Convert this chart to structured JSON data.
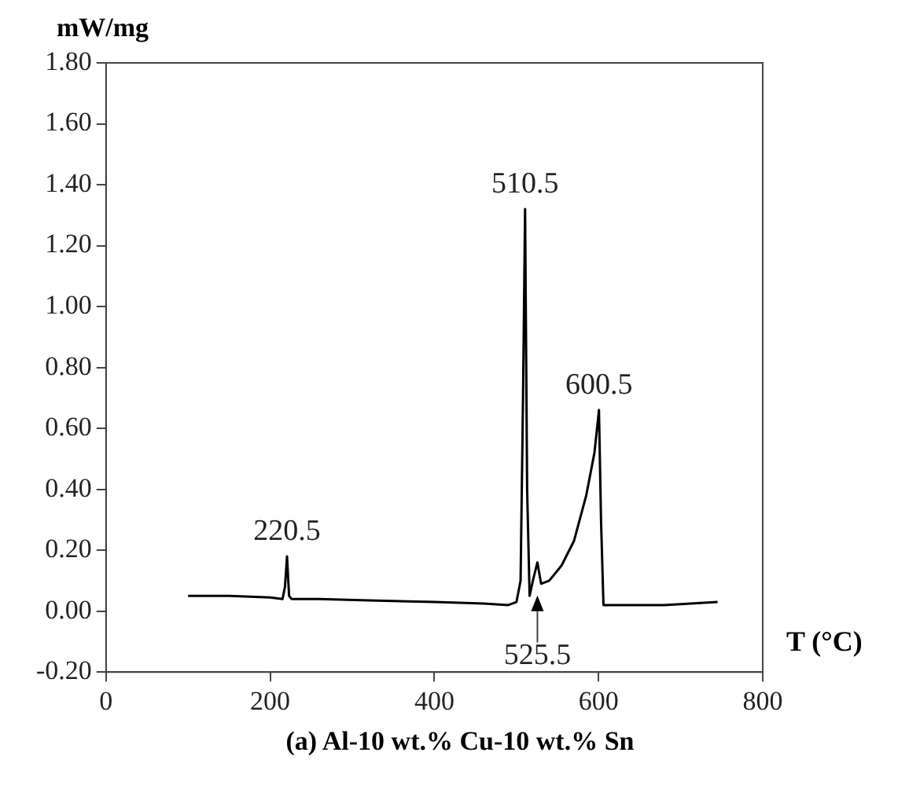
{
  "chart_data": {
    "type": "line",
    "title": "(a) Al-10 wt.% Cu-10 wt.% Sn",
    "xlabel": "T (°C)",
    "ylabel": "mW/mg",
    "x": [
      100,
      150,
      200,
      215,
      218,
      220.5,
      223,
      226,
      260,
      320,
      400,
      460,
      490,
      500,
      505,
      508,
      510.5,
      513,
      516,
      520,
      525.5,
      530,
      540,
      555,
      570,
      585,
      595,
      600.5,
      603,
      606,
      620,
      680,
      745
    ],
    "series": [
      {
        "color": "#000000",
        "values": [
          0.05,
          0.05,
          0.045,
          0.04,
          0.08,
          0.18,
          0.05,
          0.04,
          0.04,
          0.035,
          0.03,
          0.025,
          0.02,
          0.03,
          0.1,
          0.7,
          1.32,
          0.4,
          0.05,
          0.1,
          0.16,
          0.09,
          0.1,
          0.15,
          0.23,
          0.38,
          0.52,
          0.66,
          0.3,
          0.02,
          0.02,
          0.02,
          0.03
        ]
      }
    ],
    "xlim": [
      0,
      800
    ],
    "xticks": [
      0,
      200,
      400,
      600,
      800
    ],
    "ylim": [
      -0.2,
      1.8
    ],
    "yticks": [
      {
        "value": -0.2,
        "label": "-0.20"
      },
      {
        "value": 0,
        "label": "0.00"
      },
      {
        "value": 0.2,
        "label": "0.20"
      },
      {
        "value": 0.4,
        "label": "0.40"
      },
      {
        "value": 0.6,
        "label": "0.60"
      },
      {
        "value": 0.8,
        "label": "0.80"
      },
      {
        "value": 1,
        "label": "1.00"
      },
      {
        "value": 1.2,
        "label": "1.20"
      },
      {
        "value": 1.4,
        "label": "1.40"
      },
      {
        "value": 1.6,
        "label": "1.60"
      },
      {
        "value": 1.8,
        "label": "1.80"
      }
    ],
    "grid": false,
    "legend": false,
    "marker": "none",
    "line_style": "solid",
    "annotations": [
      {
        "text": "220.5",
        "x": 220.5,
        "y": 0.18
      },
      {
        "text": "510.5",
        "x": 510.5,
        "y": 1.32
      },
      {
        "text": "600.5",
        "x": 600.5,
        "y": 0.66
      },
      {
        "text": "525.5",
        "x": 525.5,
        "y": 0.16
      }
    ]
  }
}
